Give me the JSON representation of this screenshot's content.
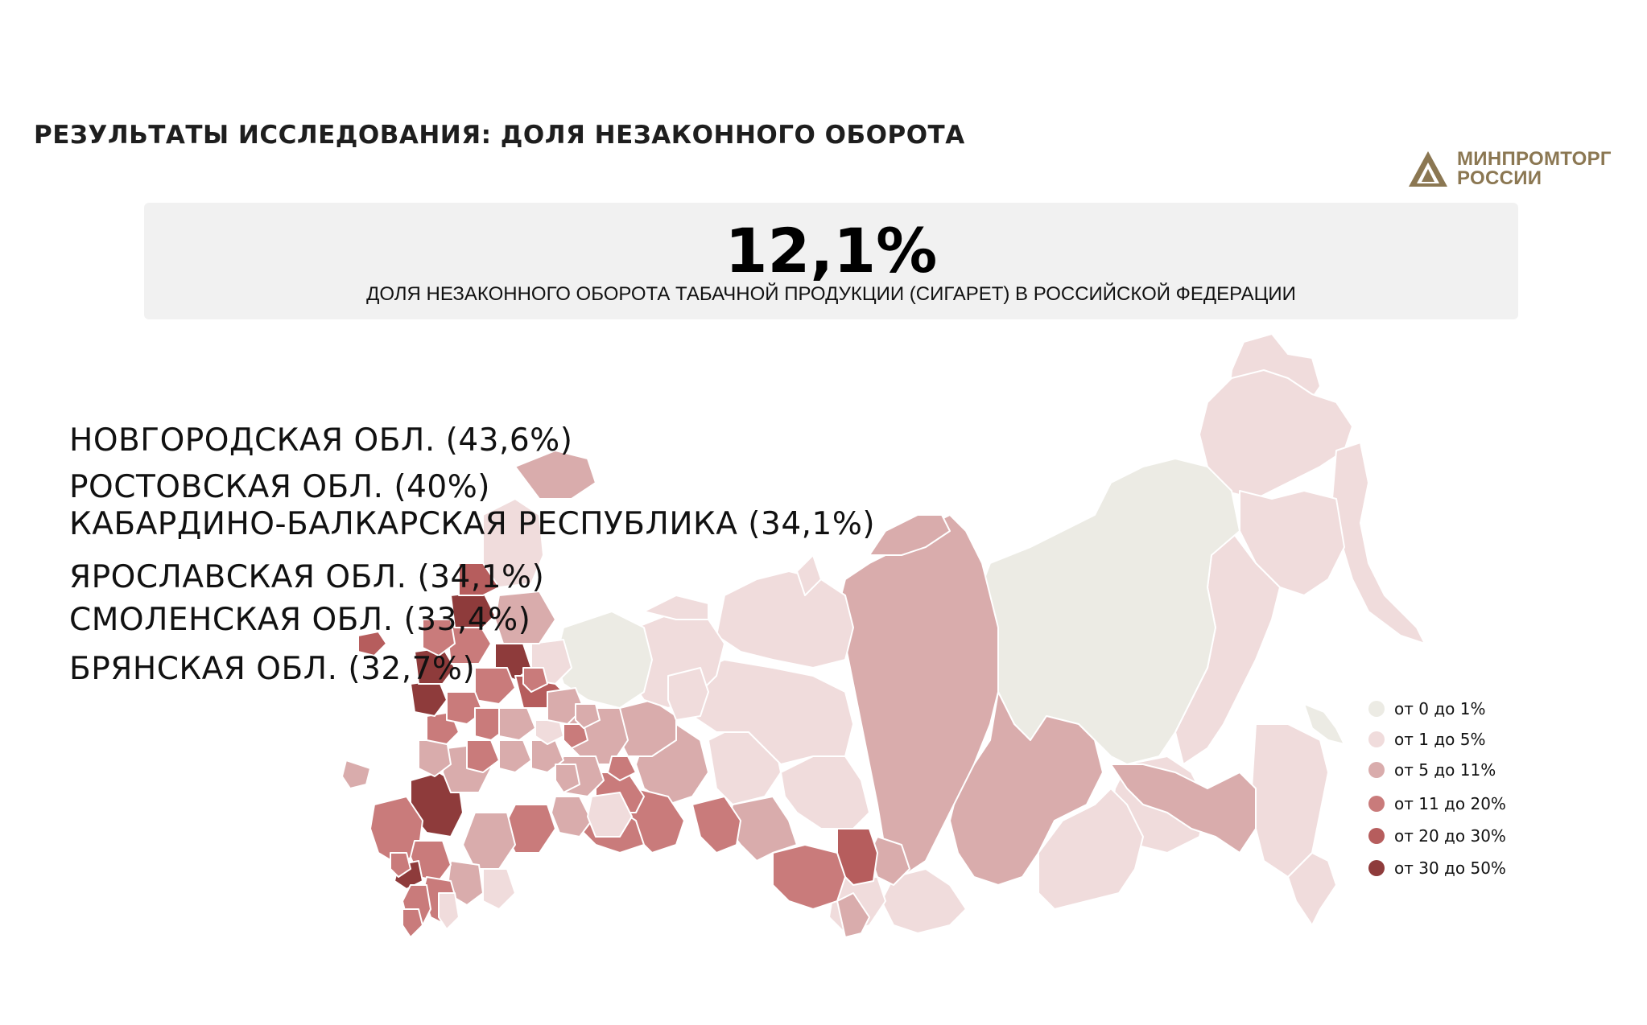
{
  "header": {
    "title": "РЕЗУЛЬТАТЫ ИССЛЕДОВАНИЯ: ДОЛЯ НЕЗАКОННОГО ОБОРОТА"
  },
  "logo": {
    "line1": "МИНПРОМТОРГ",
    "line2": "РОССИИ",
    "color": "#8b7752"
  },
  "headline_stat": {
    "value": "12,1%",
    "caption": "ДОЛЯ НЕЗАКОННОГО ОБОРОТА ТАБАЧНОЙ ПРОДУКЦИИ (СИГАРЕТ) В РОССИЙСКОЙ ФЕДЕРАЦИИ"
  },
  "top_regions": [
    "НОВГОРОДСКАЯ ОБЛ. (43,6%)",
    "РОСТОВСКАЯ ОБЛ. (40%)",
    "КАБАРДИНО-БАЛКАРСКАЯ РЕСПУБЛИКА (34,1%)",
    "ЯРОСЛАВСКАЯ ОБЛ. (34,1%)",
    "СМОЛЕНСКАЯ ОБЛ. (33,4%)",
    "БРЯНСКАЯ ОБЛ. (32,7%)"
  ],
  "legend": [
    {
      "label": "от 0 до 1%",
      "color": "#ecebe4"
    },
    {
      "label": "от 1 до 5%",
      "color": "#f0dcdc"
    },
    {
      "label": "от 5 до 11%",
      "color": "#d9acac"
    },
    {
      "label": "от 11 до 20%",
      "color": "#c97b7b"
    },
    {
      "label": "от 20 до 30%",
      "color": "#b65d5d"
    },
    {
      "label": "от 30 до 50%",
      "color": "#8e3b3b"
    }
  ]
}
